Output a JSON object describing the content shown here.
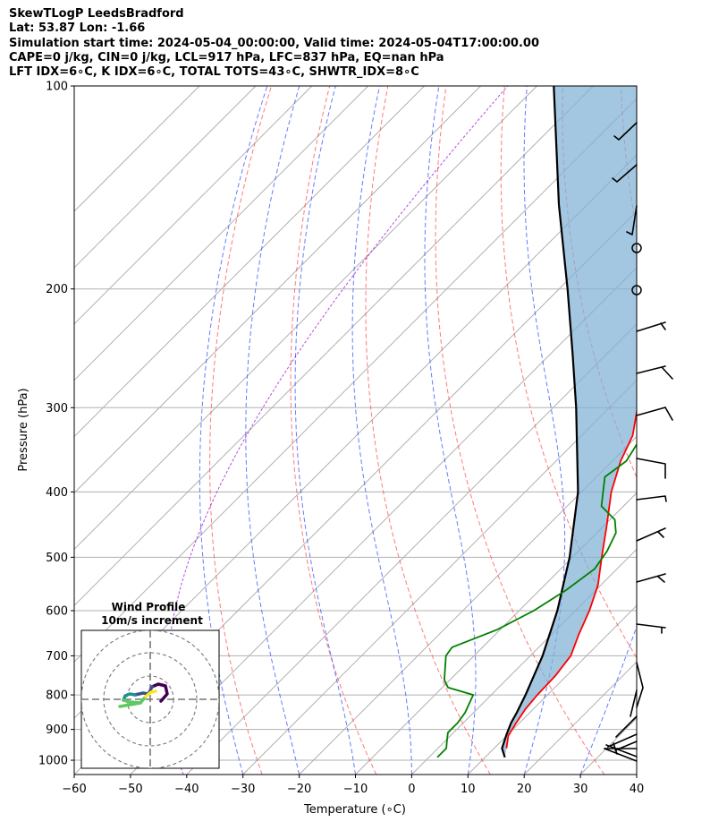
{
  "header": {
    "line1": "SkewTLogP LeedsBradford",
    "line2": "Lat: 53.87   Lon: -1.66",
    "line3": "Simulation start time: 2024-05-04_00:00:00, Valid time: 2024-05-04T17:00:00.00",
    "line4": "CAPE=0 j/kg, CIN=0 j/kg, LCL=917 hPa, LFC=837 hPa, EQ=nan hPa",
    "line5": "LFT IDX=6∘C, K IDX=6∘C, TOTAL TOTS=43∘C, SHWTR_IDX=8∘C"
  },
  "chart_data": {
    "type": "line",
    "chart_kind": "Skew-T log-P diagram",
    "xlabel": "Temperature (∘C)",
    "ylabel": "Pressure (hPa)",
    "xlim": [
      -60,
      40
    ],
    "ylim": [
      1050,
      100
    ],
    "y_scale": "log",
    "x_ticks": [
      "−60",
      "−50",
      "−40",
      "−30",
      "−20",
      "−10",
      "0",
      "10",
      "20",
      "30",
      "40"
    ],
    "y_ticks": [
      "100",
      "200",
      "300",
      "400",
      "500",
      "600",
      "700",
      "800",
      "900",
      "1000"
    ],
    "grid": true,
    "series": [
      {
        "role": "temperature",
        "color": "#ff0000",
        "pressure": [
          960,
          920,
          880,
          840,
          800,
          750,
          700,
          650,
          600,
          550,
          500,
          450,
          400,
          360,
          330,
          300,
          270,
          250,
          230,
          210,
          190,
          170,
          150,
          130,
          115,
          105,
          100
        ],
        "temperature": [
          12.2,
          10.3,
          9.4,
          8.6,
          8.2,
          8.0,
          7.2,
          4.8,
          2.5,
          -0.5,
          -4.8,
          -9.4,
          -14.7,
          -18.5,
          -20.9,
          -25.0,
          -30.0,
          -33.0,
          -35.0,
          -37.0,
          -40.0,
          -45.0,
          -50.0,
          -55.0,
          -59.0,
          -61.5,
          -63.0
        ]
      },
      {
        "role": "dewpoint",
        "color": "#008000",
        "pressure": [
          990,
          960,
          940,
          910,
          880,
          850,
          820,
          800,
          780,
          760,
          700,
          680,
          640,
          600,
          560,
          520,
          490,
          460,
          440,
          420,
          380,
          360,
          330,
          300,
          290,
          270,
          250,
          230,
          210,
          195,
          180,
          175,
          160,
          140,
          120,
          100
        ],
        "temperature": [
          1.5,
          1.5,
          0.5,
          -1.0,
          -1.0,
          -1.5,
          -2.5,
          -3.2,
          -9.0,
          -11.0,
          -15.0,
          -15.4,
          -10.5,
          -7.4,
          -5.3,
          -4.0,
          -4.9,
          -6.6,
          -9.1,
          -13.9,
          -18.5,
          -17.5,
          -19.2,
          -24.0,
          -24.0,
          -26.0,
          -28.5,
          -33.5,
          -38.5,
          -42.5,
          -45.0,
          -46.0,
          -48.5,
          -54.0,
          -59.0,
          -65.0
        ]
      },
      {
        "role": "parcel_profile",
        "color": "#000000",
        "pressure": [
          990,
          960,
          917,
          880,
          850,
          800,
          700,
          600,
          500,
          400,
          300,
          250,
          200,
          150,
          100
        ],
        "temperature": [
          13.5,
          11.4,
          9.8,
          8.5,
          7.7,
          6.1,
          2.2,
          -3.2,
          -10.5,
          -20.6,
          -35.9,
          -46.0,
          -58.5,
          -75.0,
          -97.0
        ]
      }
    ],
    "wind_profile_inset": {
      "title": "Wind Profile",
      "subtitle": "10m/s increment",
      "colormap": [
        "#440154",
        "#3b528b",
        "#21918c",
        "#5ec962",
        "#fde725"
      ]
    }
  }
}
